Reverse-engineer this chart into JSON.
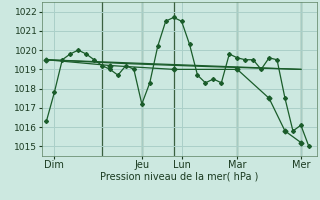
{
  "background_color": "#cce8e0",
  "grid_color": "#aacfc8",
  "line_color": "#1a5c2a",
  "marker_color": "#1a5c2a",
  "ylim": [
    1014.5,
    1022.5
  ],
  "yticks": [
    1015,
    1016,
    1017,
    1018,
    1019,
    1020,
    1021,
    1022
  ],
  "day_labels": [
    "Dim",
    "",
    "Jeu",
    "Lun",
    "",
    "Mar",
    "",
    "Mer"
  ],
  "day_show": [
    "Dim",
    "Jeu",
    "Lun",
    "Mar",
    "Mer"
  ],
  "day_show_pos": [
    0.5,
    6,
    8.5,
    12,
    16
  ],
  "vline_positions": [
    3.5,
    6,
    8,
    12,
    16
  ],
  "xlabel": "Pression niveau de la mer( hPa )",
  "series": [
    {
      "x": [
        0,
        0.5,
        1,
        1.5,
        2,
        2.5,
        3,
        3.5,
        4,
        4.5,
        5,
        5.5,
        6,
        6.5,
        7,
        7.5,
        8,
        8.5,
        9,
        9.5,
        10,
        10.5,
        11,
        11.5,
        12,
        12.5,
        13,
        13.5,
        14,
        14.5,
        15,
        15.5,
        16,
        16.5
      ],
      "y": [
        1016.3,
        1017.8,
        1019.5,
        1019.8,
        1020.0,
        1019.8,
        1019.5,
        1019.2,
        1019.0,
        1018.7,
        1019.2,
        1019.0,
        1017.2,
        1018.3,
        1020.2,
        1021.5,
        1021.7,
        1021.5,
        1020.3,
        1018.7,
        1018.3,
        1018.5,
        1018.3,
        1019.8,
        1019.6,
        1019.5,
        1019.5,
        1019.0,
        1019.6,
        1019.5,
        1017.5,
        1015.8,
        1016.1,
        1015.0
      ]
    },
    {
      "x": [
        0,
        16
      ],
      "y": [
        1019.5,
        1019.0
      ]
    },
    {
      "x": [
        0,
        5,
        10,
        16
      ],
      "y": [
        1019.5,
        1019.3,
        1019.15,
        1019.0
      ]
    },
    {
      "x": [
        0,
        4,
        8,
        12,
        14,
        15,
        16
      ],
      "y": [
        1019.5,
        1019.2,
        1019.0,
        1019.0,
        1017.5,
        1015.8,
        1015.2
      ]
    }
  ]
}
